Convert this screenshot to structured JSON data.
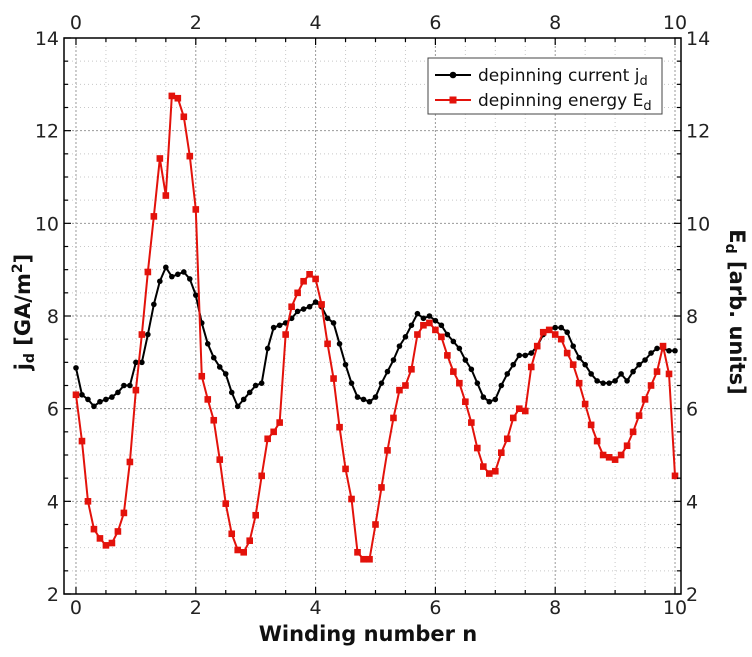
{
  "chart_data": {
    "type": "line",
    "xlabel": "Winding number n",
    "ylabel_left": "jd [GA/m²]",
    "ylabel_right": "Ed [arb. units]",
    "xlim": [
      -0.2,
      10.1
    ],
    "ylim_left": [
      2,
      14
    ],
    "ylim_right": [
      2,
      14
    ],
    "x_ticks": [
      0,
      2,
      4,
      6,
      8,
      10
    ],
    "y_ticks": [
      2,
      4,
      6,
      8,
      10,
      12,
      14
    ],
    "grid": "dotted major and minor",
    "legend_position": "top-right",
    "series": [
      {
        "name": "depinning current jd",
        "axis": "left",
        "color": "#000000",
        "marker": "circle",
        "points": [
          [
            0.0,
            6.88
          ],
          [
            0.1,
            6.3
          ],
          [
            0.2,
            6.2
          ],
          [
            0.3,
            6.05
          ],
          [
            0.4,
            6.15
          ],
          [
            0.5,
            6.2
          ],
          [
            0.6,
            6.25
          ],
          [
            0.7,
            6.35
          ],
          [
            0.8,
            6.5
          ],
          [
            0.9,
            6.5
          ],
          [
            1.0,
            7.0
          ],
          [
            1.1,
            7.0
          ],
          [
            1.2,
            7.6
          ],
          [
            1.3,
            8.25
          ],
          [
            1.4,
            8.75
          ],
          [
            1.5,
            9.05
          ],
          [
            1.6,
            8.85
          ],
          [
            1.7,
            8.9
          ],
          [
            1.8,
            8.95
          ],
          [
            1.9,
            8.8
          ],
          [
            2.0,
            8.45
          ],
          [
            2.1,
            7.85
          ],
          [
            2.2,
            7.4
          ],
          [
            2.3,
            7.1
          ],
          [
            2.4,
            6.9
          ],
          [
            2.5,
            6.75
          ],
          [
            2.6,
            6.35
          ],
          [
            2.7,
            6.05
          ],
          [
            2.8,
            6.2
          ],
          [
            2.9,
            6.35
          ],
          [
            3.0,
            6.5
          ],
          [
            3.1,
            6.55
          ],
          [
            3.2,
            7.3
          ],
          [
            3.3,
            7.75
          ],
          [
            3.4,
            7.8
          ],
          [
            3.5,
            7.85
          ],
          [
            3.6,
            7.95
          ],
          [
            3.7,
            8.1
          ],
          [
            3.8,
            8.15
          ],
          [
            3.9,
            8.2
          ],
          [
            4.0,
            8.3
          ],
          [
            4.1,
            8.2
          ],
          [
            4.2,
            7.95
          ],
          [
            4.3,
            7.85
          ],
          [
            4.4,
            7.4
          ],
          [
            4.5,
            6.95
          ],
          [
            4.6,
            6.55
          ],
          [
            4.7,
            6.25
          ],
          [
            4.8,
            6.2
          ],
          [
            4.9,
            6.15
          ],
          [
            5.0,
            6.25
          ],
          [
            5.1,
            6.55
          ],
          [
            5.2,
            6.8
          ],
          [
            5.3,
            7.05
          ],
          [
            5.4,
            7.35
          ],
          [
            5.5,
            7.55
          ],
          [
            5.6,
            7.8
          ],
          [
            5.7,
            8.05
          ],
          [
            5.8,
            7.95
          ],
          [
            5.9,
            8.0
          ],
          [
            6.0,
            7.9
          ],
          [
            6.1,
            7.8
          ],
          [
            6.2,
            7.6
          ],
          [
            6.3,
            7.45
          ],
          [
            6.4,
            7.3
          ],
          [
            6.5,
            7.05
          ],
          [
            6.6,
            6.85
          ],
          [
            6.7,
            6.55
          ],
          [
            6.8,
            6.25
          ],
          [
            6.9,
            6.15
          ],
          [
            7.0,
            6.2
          ],
          [
            7.1,
            6.5
          ],
          [
            7.2,
            6.75
          ],
          [
            7.3,
            6.95
          ],
          [
            7.4,
            7.15
          ],
          [
            7.5,
            7.15
          ],
          [
            7.6,
            7.2
          ],
          [
            7.7,
            7.35
          ],
          [
            7.8,
            7.6
          ],
          [
            7.9,
            7.7
          ],
          [
            8.0,
            7.75
          ],
          [
            8.1,
            7.75
          ],
          [
            8.2,
            7.65
          ],
          [
            8.3,
            7.35
          ],
          [
            8.4,
            7.1
          ],
          [
            8.5,
            6.95
          ],
          [
            8.6,
            6.75
          ],
          [
            8.7,
            6.6
          ],
          [
            8.8,
            6.55
          ],
          [
            8.9,
            6.55
          ],
          [
            9.0,
            6.6
          ],
          [
            9.1,
            6.75
          ],
          [
            9.2,
            6.6
          ],
          [
            9.3,
            6.8
          ],
          [
            9.4,
            6.95
          ],
          [
            9.5,
            7.05
          ],
          [
            9.6,
            7.2
          ],
          [
            9.7,
            7.3
          ],
          [
            9.8,
            7.3
          ],
          [
            9.9,
            7.25
          ],
          [
            10.0,
            7.25
          ]
        ]
      },
      {
        "name": "depinning energy Ed",
        "axis": "right",
        "color": "#e3120b",
        "marker": "square",
        "points": [
          [
            0.0,
            6.3
          ],
          [
            0.1,
            5.3
          ],
          [
            0.2,
            4.0
          ],
          [
            0.3,
            3.4
          ],
          [
            0.4,
            3.2
          ],
          [
            0.5,
            3.05
          ],
          [
            0.6,
            3.1
          ],
          [
            0.7,
            3.35
          ],
          [
            0.8,
            3.75
          ],
          [
            0.9,
            4.85
          ],
          [
            1.0,
            6.4
          ],
          [
            1.1,
            7.6
          ],
          [
            1.2,
            8.95
          ],
          [
            1.3,
            10.15
          ],
          [
            1.4,
            11.4
          ],
          [
            1.5,
            10.6
          ],
          [
            1.6,
            12.75
          ],
          [
            1.7,
            12.7
          ],
          [
            1.8,
            12.3
          ],
          [
            1.9,
            11.45
          ],
          [
            2.0,
            10.3
          ],
          [
            2.1,
            6.7
          ],
          [
            2.2,
            6.2
          ],
          [
            2.3,
            5.75
          ],
          [
            2.4,
            4.9
          ],
          [
            2.5,
            3.95
          ],
          [
            2.6,
            3.3
          ],
          [
            2.7,
            2.95
          ],
          [
            2.8,
            2.9
          ],
          [
            2.9,
            3.15
          ],
          [
            3.0,
            3.7
          ],
          [
            3.1,
            4.55
          ],
          [
            3.2,
            5.35
          ],
          [
            3.3,
            5.5
          ],
          [
            3.4,
            5.7
          ],
          [
            3.5,
            7.6
          ],
          [
            3.6,
            8.2
          ],
          [
            3.7,
            8.5
          ],
          [
            3.8,
            8.75
          ],
          [
            3.9,
            8.9
          ],
          [
            4.0,
            8.8
          ],
          [
            4.1,
            8.25
          ],
          [
            4.2,
            7.4
          ],
          [
            4.3,
            6.65
          ],
          [
            4.4,
            5.6
          ],
          [
            4.5,
            4.7
          ],
          [
            4.6,
            4.05
          ],
          [
            4.7,
            2.9
          ],
          [
            4.8,
            2.75
          ],
          [
            4.9,
            2.75
          ],
          [
            5.0,
            3.5
          ],
          [
            5.1,
            4.3
          ],
          [
            5.2,
            5.1
          ],
          [
            5.3,
            5.8
          ],
          [
            5.4,
            6.4
          ],
          [
            5.5,
            6.5
          ],
          [
            5.6,
            6.85
          ],
          [
            5.7,
            7.6
          ],
          [
            5.8,
            7.8
          ],
          [
            5.9,
            7.85
          ],
          [
            6.0,
            7.7
          ],
          [
            6.1,
            7.55
          ],
          [
            6.2,
            7.15
          ],
          [
            6.3,
            6.8
          ],
          [
            6.4,
            6.55
          ],
          [
            6.5,
            6.15
          ],
          [
            6.6,
            5.7
          ],
          [
            6.7,
            5.15
          ],
          [
            6.8,
            4.75
          ],
          [
            6.9,
            4.6
          ],
          [
            7.0,
            4.65
          ],
          [
            7.1,
            5.05
          ],
          [
            7.2,
            5.35
          ],
          [
            7.3,
            5.8
          ],
          [
            7.4,
            6.0
          ],
          [
            7.5,
            5.95
          ],
          [
            7.6,
            6.9
          ],
          [
            7.7,
            7.35
          ],
          [
            7.8,
            7.65
          ],
          [
            7.9,
            7.7
          ],
          [
            8.0,
            7.6
          ],
          [
            8.1,
            7.5
          ],
          [
            8.2,
            7.2
          ],
          [
            8.3,
            6.95
          ],
          [
            8.4,
            6.55
          ],
          [
            8.5,
            6.1
          ],
          [
            8.6,
            5.65
          ],
          [
            8.7,
            5.3
          ],
          [
            8.8,
            5.0
          ],
          [
            8.9,
            4.95
          ],
          [
            9.0,
            4.9
          ],
          [
            9.1,
            5.0
          ],
          [
            9.2,
            5.2
          ],
          [
            9.3,
            5.5
          ],
          [
            9.4,
            5.85
          ],
          [
            9.5,
            6.2
          ],
          [
            9.6,
            6.5
          ],
          [
            9.7,
            6.8
          ],
          [
            9.8,
            7.35
          ],
          [
            9.9,
            6.75
          ],
          [
            10.0,
            4.55
          ]
        ]
      }
    ]
  },
  "labels": {
    "xlabel": "Winding number n",
    "ylabel_left": "jd [GA/m²]",
    "ylabel_right": "Ed [arb. units]",
    "legend_1_base": "depinning current j",
    "legend_1_sub": "d",
    "legend_2_base": "depinning energy E",
    "legend_2_sub": "d"
  }
}
